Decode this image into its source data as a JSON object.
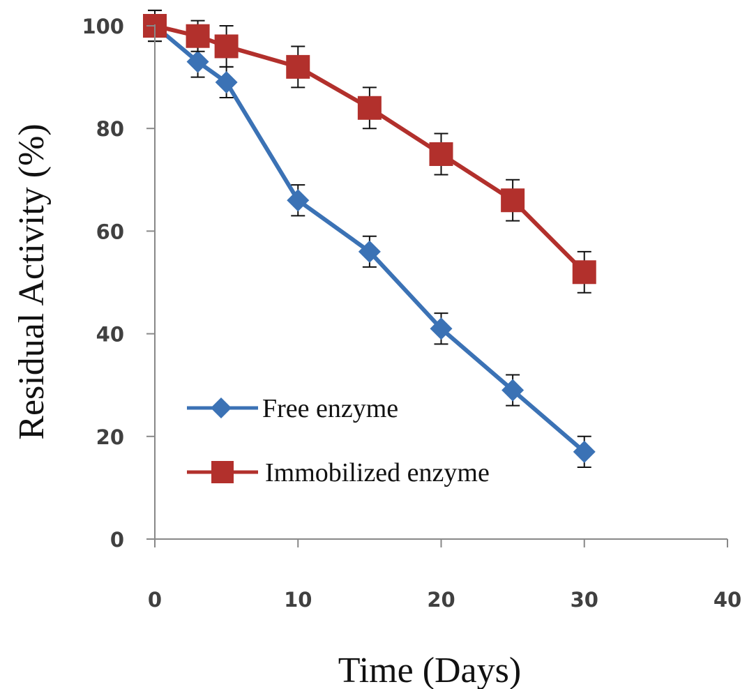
{
  "chart_data": {
    "type": "line",
    "title": "",
    "xlabel": "Time (Days)",
    "ylabel": "Residual Activity (%)",
    "xlim": [
      0,
      40
    ],
    "ylim": [
      0,
      100
    ],
    "xticks": [
      0,
      10,
      20,
      30,
      40
    ],
    "yticks": [
      0,
      20,
      40,
      60,
      80,
      100
    ],
    "grid": false,
    "legend_position": "bottom-left",
    "series": [
      {
        "name": "Free enzyme",
        "color": "#3b72b5",
        "marker": "diamond",
        "x": [
          0,
          3,
          5,
          10,
          15,
          20,
          25,
          30
        ],
        "y": [
          100,
          93,
          89,
          66,
          56,
          41,
          29,
          17
        ],
        "error": [
          3,
          3,
          3,
          3,
          3,
          3,
          3,
          3
        ]
      },
      {
        "name": "Immobilized enzyme",
        "color": "#b2302c",
        "marker": "square",
        "x": [
          0,
          3,
          5,
          10,
          15,
          20,
          25,
          30
        ],
        "y": [
          100,
          98,
          96,
          92,
          84,
          75,
          66,
          52
        ],
        "error": [
          3,
          3,
          4,
          4,
          4,
          4,
          4,
          4
        ]
      }
    ]
  }
}
